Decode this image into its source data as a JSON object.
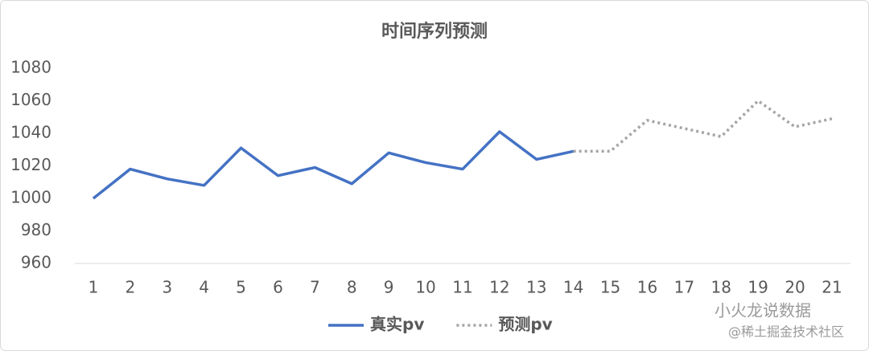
{
  "chart_data": {
    "type": "line",
    "title": "时间序列预测",
    "categories": [
      "1",
      "2",
      "3",
      "4",
      "5",
      "6",
      "7",
      "8",
      "9",
      "10",
      "11",
      "12",
      "13",
      "14",
      "15",
      "16",
      "17",
      "18",
      "19",
      "20",
      "21"
    ],
    "series": [
      {
        "name": "真实pv",
        "color": "#4472c4",
        "dash": "solid",
        "values": [
          1000,
          1018,
          1012,
          1008,
          1031,
          1014,
          1019,
          1009,
          1028,
          1022,
          1018,
          1041,
          1024,
          1029,
          null,
          null,
          null,
          null,
          null,
          null,
          null
        ]
      },
      {
        "name": "预测pv",
        "color": "#a5a5a5",
        "dash": "dotted",
        "values": [
          null,
          null,
          null,
          null,
          null,
          null,
          null,
          null,
          null,
          null,
          null,
          null,
          null,
          1029,
          1029,
          1048,
          1043,
          1038,
          1060,
          1044,
          1049
        ]
      }
    ],
    "ylim": [
      960,
      1080
    ],
    "yticks": [
      960,
      980,
      1000,
      1020,
      1040,
      1060,
      1080
    ],
    "grid": false,
    "legend": "bottom"
  },
  "watermark": [
    "小火龙说数据",
    "@稀土掘金技术社区"
  ]
}
